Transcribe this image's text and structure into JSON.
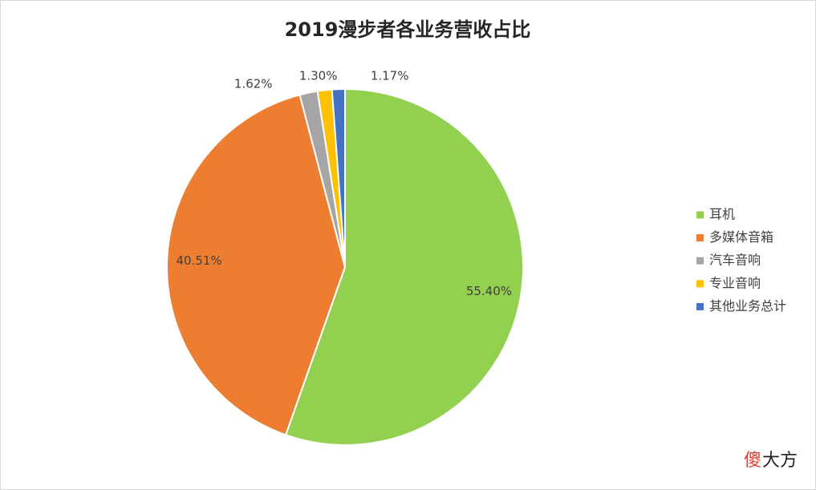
{
  "chart_data": {
    "type": "pie",
    "title": "2019漫步者各业务营收占比",
    "categories": [
      "耳机",
      "多媒体音箱",
      "汽车音响",
      "专业音响",
      "其他业务总计"
    ],
    "values": [
      55.4,
      40.51,
      1.62,
      1.3,
      1.17
    ],
    "value_labels": [
      "55.40%",
      "40.51%",
      "1.62%",
      "1.30%",
      "1.17%"
    ],
    "colors": [
      "#92d050",
      "#ed7d31",
      "#a5a5a5",
      "#ffc000",
      "#4472c4"
    ],
    "legend": "right"
  },
  "watermark": {
    "accent": "傻",
    "rest": "大方"
  }
}
